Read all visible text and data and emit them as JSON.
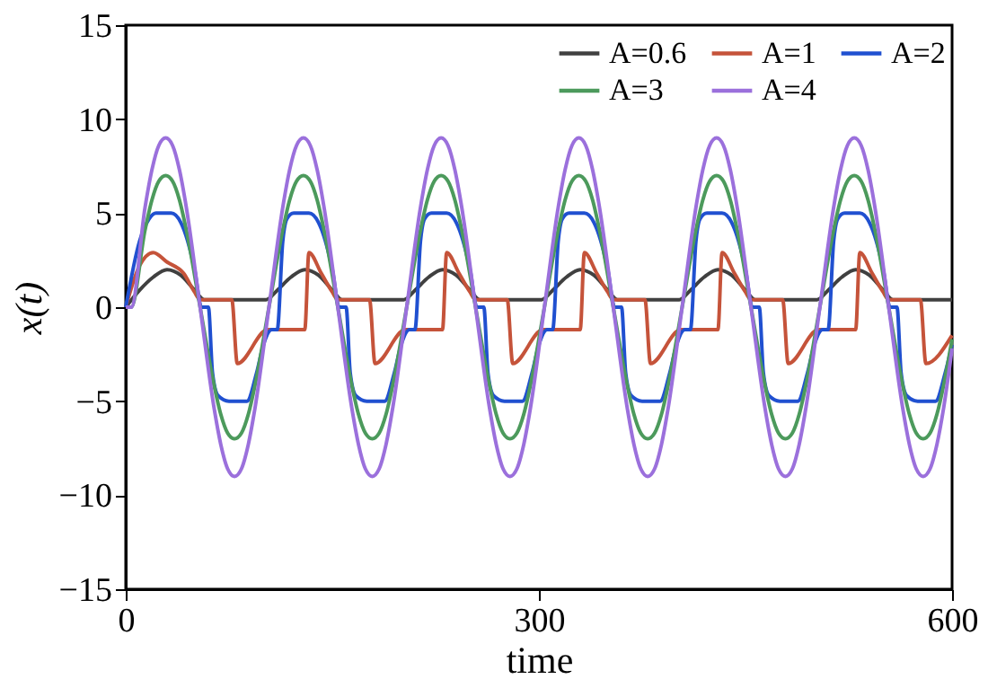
{
  "chart_data": {
    "type": "line",
    "xlabel": "time",
    "ylabel": "x(t)",
    "xlim": [
      0,
      600
    ],
    "ylim": [
      -15,
      15
    ],
    "xticks": [
      0,
      300,
      600
    ],
    "yticks": [
      -15,
      -10,
      -5,
      0,
      5,
      10,
      15
    ],
    "grid": false,
    "legend": "top right",
    "line_style": "solid",
    "marker": "none",
    "series": [
      {
        "name": "A=0.6",
        "color": "#404040",
        "x": [
          0,
          10,
          20,
          30,
          40,
          50,
          57,
          102,
          110,
          120,
          130,
          140,
          150,
          157,
          202,
          210,
          220,
          230,
          240,
          250,
          257,
          302,
          310,
          320,
          330,
          340,
          350,
          357,
          402,
          410,
          420,
          430,
          440,
          450,
          457,
          502,
          510,
          520,
          530,
          540,
          550,
          557,
          600
        ],
        "values": [
          0,
          0.9,
          1.6,
          2.0,
          1.7,
          0.9,
          0.4,
          0.4,
          0.9,
          1.6,
          2.0,
          1.7,
          0.9,
          0.4,
          0.4,
          0.9,
          1.6,
          2.0,
          1.7,
          0.9,
          0.4,
          0.4,
          0.9,
          1.6,
          2.0,
          1.7,
          0.9,
          0.4,
          0.4,
          0.9,
          1.6,
          2.0,
          1.7,
          0.9,
          0.4,
          0.4,
          0.9,
          1.6,
          2.0,
          1.7,
          0.9,
          0.4,
          0.4
        ]
      },
      {
        "name": "A=1",
        "color": "#c5533a",
        "x": [
          0,
          10,
          20,
          30,
          42,
          50,
          54,
          77,
          81,
          103,
          130,
          133,
          142,
          150,
          154,
          177,
          181,
          203,
          230,
          233,
          242,
          250,
          254,
          277,
          281,
          303,
          330,
          333,
          342,
          350,
          354,
          377,
          381,
          403,
          430,
          433,
          442,
          450,
          454,
          477,
          481,
          503,
          530,
          533,
          542,
          550,
          554,
          577,
          581,
          600
        ],
        "values": [
          0,
          2.2,
          2.9,
          2.4,
          1.8,
          0.8,
          0.4,
          0.4,
          -3,
          -1.2,
          -1.2,
          2.9,
          1.8,
          0.8,
          0.4,
          0.4,
          -3,
          -1.2,
          -1.2,
          2.9,
          1.8,
          0.8,
          0.4,
          0.4,
          -3,
          -1.2,
          -1.2,
          2.9,
          1.8,
          0.8,
          0.4,
          0.4,
          -3,
          -1.2,
          -1.2,
          2.9,
          1.8,
          0.8,
          0.4,
          0.4,
          -3,
          -1.2,
          -1.2,
          2.9,
          1.8,
          0.8,
          0.4,
          0.4,
          -3,
          -1.5
        ]
      },
      {
        "name": "A=2",
        "color": "#2050d0",
        "x": [
          0,
          10,
          17,
          22,
          33,
          40,
          50,
          55,
          60,
          63,
          67,
          75,
          88,
          95,
          100,
          106,
          110,
          114,
          117,
          122,
          133,
          140,
          150,
          155,
          160,
          163,
          167,
          175,
          188,
          195,
          200,
          206,
          210,
          214,
          217,
          222,
          233,
          240,
          250,
          255,
          260,
          263,
          267,
          275,
          288,
          295,
          300,
          306,
          310,
          314,
          317,
          322,
          333,
          340,
          350,
          355,
          360,
          363,
          367,
          375,
          388,
          395,
          400,
          406,
          410,
          414,
          417,
          422,
          433,
          440,
          450,
          455,
          460,
          463,
          467,
          475,
          488,
          495,
          500,
          506,
          510,
          514,
          517,
          522,
          533,
          540,
          550,
          555,
          560,
          563,
          567,
          575,
          588,
          595,
          600
        ],
        "values": [
          0,
          3.5,
          4.7,
          5,
          5,
          4.5,
          2,
          0,
          0,
          -3.5,
          -4.7,
          -5,
          -5,
          -3.5,
          -2,
          -1.2,
          -1.2,
          3.5,
          4.7,
          5,
          5,
          4.5,
          2,
          0,
          0,
          -3.5,
          -4.7,
          -5,
          -5,
          -3.5,
          -2,
          -1.2,
          -1.2,
          3.5,
          4.7,
          5,
          5,
          4.5,
          2,
          0,
          0,
          -3.5,
          -4.7,
          -5,
          -5,
          -3.5,
          -2,
          -1.2,
          -1.2,
          3.5,
          4.7,
          5,
          5,
          4.5,
          2,
          0,
          0,
          -3.5,
          -4.7,
          -5,
          -5,
          -3.5,
          -2,
          -1.2,
          -1.2,
          3.5,
          4.7,
          5,
          5,
          4.5,
          2,
          0,
          0,
          -3.5,
          -4.7,
          -5,
          -5,
          -3.5,
          -2,
          -1.2,
          -1.2,
          3.5,
          4.7,
          5,
          5,
          4.5,
          2,
          0,
          0,
          -3.5,
          -4.7,
          -5,
          -5,
          -3.5,
          -2
        ]
      },
      {
        "name": "A=3",
        "color": "#4c9a5c",
        "x": [
          0,
          4,
          14,
          19,
          24,
          29,
          34,
          39,
          44,
          54,
          64,
          69,
          74,
          79,
          84,
          89,
          94,
          104,
          114,
          119,
          124,
          129,
          134,
          139,
          144,
          154,
          164,
          169,
          174,
          179,
          184,
          189,
          194,
          204,
          214,
          219,
          224,
          229,
          234,
          239,
          244,
          254,
          264,
          269,
          274,
          279,
          284,
          289,
          294,
          304,
          314,
          319,
          324,
          329,
          334,
          339,
          344,
          354,
          364,
          369,
          374,
          379,
          384,
          389,
          394,
          404,
          414,
          419,
          424,
          429,
          434,
          439,
          444,
          454,
          464,
          469,
          474,
          479,
          484,
          489,
          494,
          504,
          514,
          519,
          524,
          529,
          534,
          539,
          544,
          554,
          564,
          569,
          574,
          579,
          584,
          589,
          594,
          600
        ],
        "values": [
          0,
          0,
          4.1,
          5.7,
          6.7,
          7,
          6.7,
          5.7,
          4.1,
          0,
          -4.1,
          -5.7,
          -6.7,
          -7,
          -6.7,
          -5.7,
          -4.1,
          0,
          4.1,
          5.7,
          6.7,
          7,
          6.7,
          5.7,
          4.1,
          0,
          -4.1,
          -5.7,
          -6.7,
          -7,
          -6.7,
          -5.7,
          -4.1,
          0,
          4.1,
          5.7,
          6.7,
          7,
          6.7,
          5.7,
          4.1,
          0,
          -4.1,
          -5.7,
          -6.7,
          -7,
          -6.7,
          -5.7,
          -4.1,
          0,
          4.1,
          5.7,
          6.7,
          7,
          6.7,
          5.7,
          4.1,
          0,
          -4.1,
          -5.7,
          -6.7,
          -7,
          -6.7,
          -5.7,
          -4.1,
          0,
          4.1,
          5.7,
          6.7,
          7,
          6.7,
          5.7,
          4.1,
          0,
          -4.1,
          -5.7,
          -6.7,
          -7,
          -6.7,
          -5.7,
          -4.1,
          0,
          4.1,
          5.7,
          6.7,
          7,
          6.7,
          5.7,
          4.1,
          0,
          -4.1,
          -5.7,
          -6.7,
          -7,
          -6.7,
          -5.7,
          -4.1,
          -1.7
        ]
      },
      {
        "name": "A=4",
        "color": "#9b70dc",
        "x": [
          0,
          4,
          14,
          19,
          24,
          29,
          34,
          39,
          44,
          54,
          64,
          69,
          74,
          79,
          84,
          89,
          94,
          104,
          114,
          119,
          124,
          129,
          134,
          139,
          144,
          154,
          164,
          169,
          174,
          179,
          184,
          189,
          194,
          204,
          214,
          219,
          224,
          229,
          234,
          239,
          244,
          254,
          264,
          269,
          274,
          279,
          284,
          289,
          294,
          304,
          314,
          319,
          324,
          329,
          334,
          339,
          344,
          354,
          364,
          369,
          374,
          379,
          384,
          389,
          394,
          404,
          414,
          419,
          424,
          429,
          434,
          439,
          444,
          454,
          464,
          469,
          474,
          479,
          484,
          489,
          494,
          504,
          514,
          519,
          524,
          529,
          534,
          539,
          544,
          554,
          564,
          569,
          574,
          579,
          584,
          589,
          594,
          600
        ],
        "values": [
          0,
          0,
          5.3,
          7.3,
          8.6,
          9,
          8.6,
          7.3,
          5.3,
          0,
          -5.3,
          -7.3,
          -8.6,
          -9,
          -8.6,
          -7.3,
          -5.3,
          0,
          5.3,
          7.3,
          8.6,
          9,
          8.6,
          7.3,
          5.3,
          0,
          -5.3,
          -7.3,
          -8.6,
          -9,
          -8.6,
          -7.3,
          -5.3,
          0,
          5.3,
          7.3,
          8.6,
          9,
          8.6,
          7.3,
          5.3,
          0,
          -5.3,
          -7.3,
          -8.6,
          -9,
          -8.6,
          -7.3,
          -5.3,
          0,
          5.3,
          7.3,
          8.6,
          9,
          8.6,
          7.3,
          5.3,
          0,
          -5.3,
          -7.3,
          -8.6,
          -9,
          -8.6,
          -7.3,
          -5.3,
          0,
          5.3,
          7.3,
          8.6,
          9,
          8.6,
          7.3,
          5.3,
          0,
          -5.3,
          -7.3,
          -8.6,
          -9,
          -8.6,
          -7.3,
          -5.3,
          0,
          5.3,
          7.3,
          8.6,
          9,
          8.6,
          7.3,
          5.3,
          0,
          -5.3,
          -7.3,
          -8.6,
          -9,
          -8.6,
          -7.3,
          -5.3,
          -2.2
        ]
      }
    ]
  }
}
